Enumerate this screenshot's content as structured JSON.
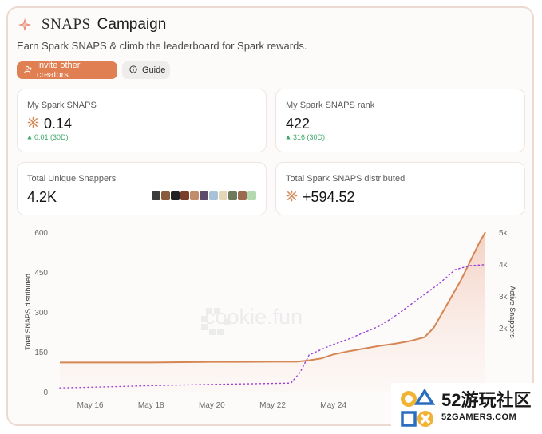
{
  "header": {
    "brand": "SNAPS",
    "title_word": "Campaign",
    "subtitle": "Earn Spark SNAPS & climb the leaderboard for Spark rewards."
  },
  "buttons": {
    "invite_label": "Invite other creators",
    "guide_label": "Guide"
  },
  "cards": {
    "my_snaps": {
      "label": "My Spark SNAPS",
      "value": "0.14",
      "delta": "0.01 (30D)"
    },
    "rank": {
      "label": "My Spark SNAPS rank",
      "value": "422",
      "delta": "316 (30D)"
    },
    "snappers": {
      "label": "Total Unique Snappers",
      "value": "4.2K"
    },
    "distributed": {
      "label": "Total Spark SNAPS distributed",
      "value": "+594.52"
    }
  },
  "avatar_colors": [
    "#3b3b3b",
    "#8a5a3c",
    "#222222",
    "#7a3d2a",
    "#c28b6a",
    "#5d4a6b",
    "#a8c3d8",
    "#e4d7b5",
    "#6f7a5c",
    "#9c6b4f",
    "#b3d9b0"
  ],
  "colors": {
    "accent": "#e07f52",
    "snaps_line": "#d58653",
    "snappers_line": "#9b3fd6",
    "positive": "#3ea76a"
  },
  "watermark": "cookie.fun",
  "chart_data": {
    "type": "line",
    "xlabel": "",
    "ylabel_left": "Total SNAPS distributed",
    "ylabel_right": "Active Snappers",
    "x_ticks": [
      "May 16",
      "May 18",
      "May 20",
      "May 22",
      "May 24"
    ],
    "y_left_ticks": [
      "600",
      "450",
      "300",
      "150",
      "0"
    ],
    "y_right_ticks": [
      "5k",
      "4k",
      "3k",
      "2k"
    ],
    "ylim_left": [
      0,
      600
    ],
    "ylim_right": [
      0,
      5000
    ],
    "series": [
      {
        "name": "Total SNAPS distributed",
        "axis": "left",
        "x": [
          15.0,
          16,
          17,
          18,
          19,
          20,
          21,
          22,
          22.8,
          23.2,
          23.6,
          24,
          24.5,
          25,
          25.5,
          26,
          26.5,
          27,
          27.3,
          27.6,
          27.9,
          28.2,
          28.5,
          28.8,
          29.0
        ],
        "y": [
          110,
          110,
          110,
          110,
          111,
          112,
          112,
          113,
          113,
          118,
          125,
          140,
          152,
          162,
          172,
          180,
          190,
          205,
          240,
          300,
          360,
          420,
          490,
          560,
          600
        ]
      },
      {
        "name": "Active Snappers",
        "axis": "right",
        "x": [
          15.0,
          16,
          17,
          18,
          19,
          20,
          21,
          22,
          22.6,
          22.9,
          23.2,
          23.6,
          24,
          24.5,
          25,
          25.5,
          26,
          26.5,
          27,
          27.5,
          28,
          28.5,
          29.0
        ],
        "y": [
          120,
          140,
          165,
          190,
          210,
          230,
          245,
          260,
          270,
          600,
          1150,
          1320,
          1480,
          1650,
          1850,
          2050,
          2350,
          2700,
          3050,
          3400,
          3820,
          3950,
          3980
        ]
      }
    ]
  }
}
